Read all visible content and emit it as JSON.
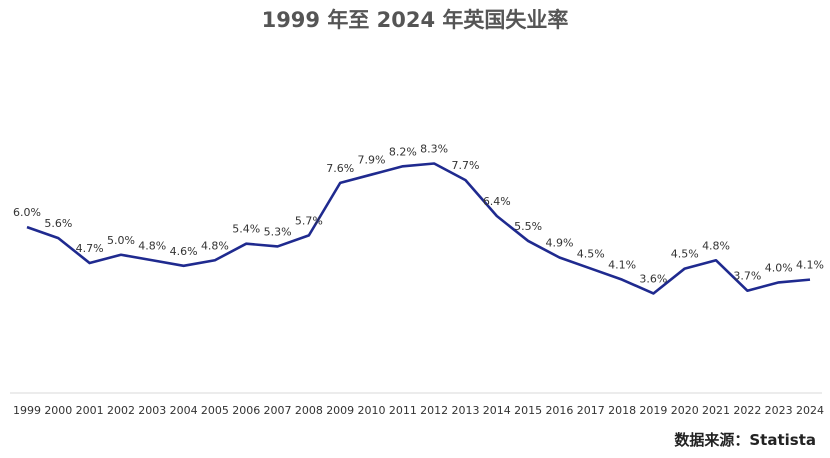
{
  "title": "1999 年至 2024 年英国失业率",
  "source": "数据来源：Statista",
  "colors": {
    "line": "#1f2a8f",
    "axis": "#d9d9d9"
  },
  "chart_data": {
    "type": "line",
    "title": "1999 年至 2024 年英国失业率",
    "xlabel": "",
    "ylabel": "",
    "ylim": [
      0,
      9.5
    ],
    "grid": false,
    "legend": "none",
    "categories": [
      "1999",
      "2000",
      "2001",
      "2002",
      "2003",
      "2004",
      "2005",
      "2006",
      "2007",
      "2008",
      "2009",
      "2010",
      "2011",
      "2012",
      "2013",
      "2014",
      "2015",
      "2016",
      "2017",
      "2018",
      "2019",
      "2020",
      "2021",
      "2022",
      "2023",
      "2024"
    ],
    "series": [
      {
        "values": [
          6.0,
          5.6,
          4.7,
          5.0,
          4.8,
          4.6,
          4.8,
          5.4,
          5.3,
          5.7,
          7.6,
          7.9,
          8.2,
          8.3,
          7.7,
          6.4,
          5.5,
          4.9,
          4.5,
          4.1,
          3.6,
          4.5,
          4.8,
          3.7,
          4.0,
          4.1
        ],
        "labels": [
          "6.0%",
          "5.6%",
          "4.7%",
          "5.0%",
          "4.8%",
          "4.6%",
          "4.8%",
          "5.4%",
          "5.3%",
          "5.7%",
          "7.6%",
          "7.9%",
          "8.2%",
          "8.3%",
          "7.7%",
          "6.4%",
          "5.5%",
          "4.9%",
          "4.5%",
          "4.1%",
          "3.6%",
          "4.5%",
          "4.8%",
          "3.7%",
          "4.0%",
          "4.1%"
        ]
      }
    ]
  }
}
